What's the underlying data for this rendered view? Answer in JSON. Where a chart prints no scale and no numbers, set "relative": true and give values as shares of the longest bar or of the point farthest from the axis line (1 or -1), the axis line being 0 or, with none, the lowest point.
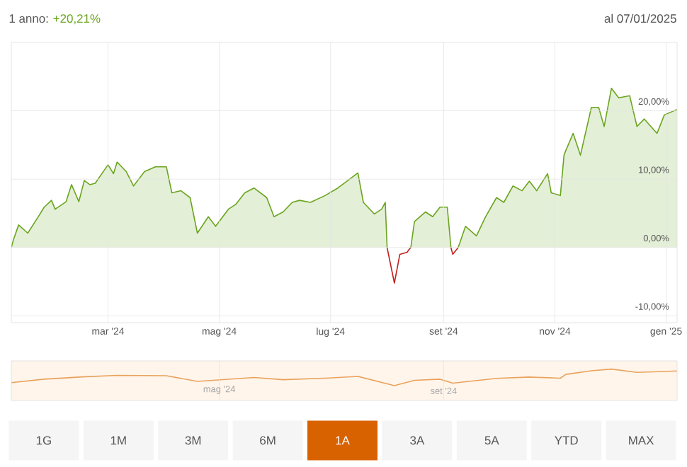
{
  "chart_data": [
    {
      "type": "area",
      "title": "1 anno:",
      "subtitle": "+20,21%",
      "annotations": [
        "al 07/01/2025"
      ],
      "x": [
        "2024-01-08",
        "2024-01-09",
        "2024-01-12",
        "2024-01-17",
        "2024-01-23",
        "2024-01-26",
        "2024-01-30",
        "2024-02-01",
        "2024-02-07",
        "2024-02-10",
        "2024-02-14",
        "2024-02-17",
        "2024-02-20",
        "2024-02-23",
        "2024-03-01",
        "2024-03-04",
        "2024-03-06",
        "2024-03-11",
        "2024-03-15",
        "2024-03-21",
        "2024-03-27",
        "2024-04-02",
        "2024-04-05",
        "2024-04-10",
        "2024-04-15",
        "2024-04-19",
        "2024-04-25",
        "2024-04-29",
        "2024-05-06",
        "2024-05-10",
        "2024-05-15",
        "2024-05-20",
        "2024-05-27",
        "2024-05-31",
        "2024-06-05",
        "2024-06-10",
        "2024-06-14",
        "2024-06-20",
        "2024-06-28",
        "2024-07-05",
        "2024-07-16",
        "2024-07-19",
        "2024-07-25",
        "2024-07-29",
        "2024-07-31",
        "2024-08-01",
        "2024-08-05",
        "2024-08-08",
        "2024-08-12",
        "2024-08-13",
        "2024-08-14",
        "2024-08-16",
        "2024-08-22",
        "2024-08-26",
        "2024-08-30",
        "2024-09-03",
        "2024-09-05",
        "2024-09-06",
        "2024-09-09",
        "2024-09-13",
        "2024-09-19",
        "2024-09-24",
        "2024-09-30",
        "2024-10-04",
        "2024-10-09",
        "2024-10-14",
        "2024-10-18",
        "2024-10-22",
        "2024-10-28",
        "2024-10-30",
        "2024-11-04",
        "2024-11-06",
        "2024-11-07",
        "2024-11-11",
        "2024-11-15",
        "2024-11-21",
        "2024-11-25",
        "2024-11-28",
        "2024-12-02",
        "2024-12-06",
        "2024-12-12",
        "2024-12-16",
        "2024-12-20",
        "2024-12-27",
        "2024-12-31",
        "2025-01-07"
      ],
      "series": [
        {
          "type": "area",
          "color": "#6aa51e",
          "values": [
            0,
            1.0,
            3.3,
            2.1,
            4.6,
            5.9,
            6.9,
            5.6,
            6.7,
            9.2,
            6.7,
            9.8,
            9.2,
            9.4,
            12.1,
            10.8,
            12.5,
            11.1,
            9.0,
            11.1,
            11.8,
            11.8,
            8.0,
            8.3,
            7.3,
            2.1,
            4.5,
            3.1,
            5.6,
            6.3,
            8.0,
            8.7,
            7.3,
            4.5,
            5.2,
            6.6,
            6.9,
            6.6,
            7.6,
            8.7,
            10.9,
            6.6,
            4.9,
            5.6,
            6.6,
            0,
            null,
            null,
            null,
            null,
            0,
            3.8,
            5.2,
            4.5,
            5.9,
            5.9,
            0,
            null,
            0,
            3.1,
            1.7,
            4.5,
            7.3,
            6.6,
            9.0,
            8.3,
            9.7,
            8.3,
            10.8,
            8.0,
            7.6,
            13.5,
            14.2,
            16.7,
            13.5,
            20.5,
            20.5,
            17.7,
            23.3,
            21.9,
            22.2,
            17.7,
            18.8,
            16.7,
            19.4,
            20.2
          ]
        },
        {
          "type": "line",
          "color": "#c0211f",
          "x": [
            "2024-08-01",
            "2024-08-05",
            "2024-08-08",
            "2024-08-12",
            "2024-08-13",
            "2024-08-14",
            "2024-08-22",
            "2024-09-05",
            "2024-09-06",
            "2024-09-09"
          ],
          "values": [
            0,
            -5.2,
            -1.0,
            -0.7,
            -0.3,
            0,
            null,
            0,
            -1.0,
            0
          ]
        }
      ],
      "xlim": [
        "2024-01-08",
        "2025-01-07"
      ],
      "xticks": [
        {
          "value": "2024-03-01",
          "label": "mar '24"
        },
        {
          "value": "2024-05-01",
          "label": "mag '24"
        },
        {
          "value": "2024-07-01",
          "label": "lug '24"
        },
        {
          "value": "2024-09-01",
          "label": "set '24"
        },
        {
          "value": "2024-11-01",
          "label": "nov '24"
        },
        {
          "value": "2025-01-01",
          "label": "gen '25"
        }
      ],
      "ylim": [
        -11,
        30
      ],
      "yticks": [
        {
          "value": -10,
          "label": "-10,00%"
        },
        {
          "value": 0,
          "label": "0,00%"
        },
        {
          "value": 10,
          "label": "10,00%"
        },
        {
          "value": 20,
          "label": "20,00%"
        }
      ],
      "grid": true
    },
    {
      "type": "line",
      "relative": true,
      "tick_labels": "x",
      "x": [
        "2024-01-08",
        "2024-01-26",
        "2024-02-16",
        "2024-03-06",
        "2024-04-02",
        "2024-04-19",
        "2024-05-20",
        "2024-06-05",
        "2024-06-28",
        "2024-07-16",
        "2024-08-05",
        "2024-08-16",
        "2024-08-30",
        "2024-09-06",
        "2024-09-30",
        "2024-10-18",
        "2024-11-04",
        "2024-11-07",
        "2024-11-21",
        "2024-12-02",
        "2024-12-16",
        "2024-12-31",
        "2025-01-07"
      ],
      "series": [
        {
          "color": "#e8a25c",
          "values": [
            0.18,
            0.39,
            0.53,
            0.62,
            0.6,
            0.26,
            0.49,
            0.36,
            0.45,
            0.56,
            0,
            0.32,
            0.39,
            0.15,
            0.44,
            0.52,
            0.45,
            0.68,
            0.9,
            1,
            0.8,
            0.86,
            0.89
          ]
        }
      ],
      "xlim": [
        "2024-01-08",
        "2025-01-07"
      ],
      "xticks": [
        {
          "value": "2024-05-01",
          "label": "mag '24"
        },
        {
          "value": "2024-09-01",
          "label": "set '24"
        }
      ],
      "grid": "x"
    },
    {
      "type": "other",
      "annotations": [
        "1G",
        "1M",
        "3M",
        "6M",
        "1A",
        "3A",
        "5A",
        "YTD",
        "MAX"
      ]
    }
  ]
}
